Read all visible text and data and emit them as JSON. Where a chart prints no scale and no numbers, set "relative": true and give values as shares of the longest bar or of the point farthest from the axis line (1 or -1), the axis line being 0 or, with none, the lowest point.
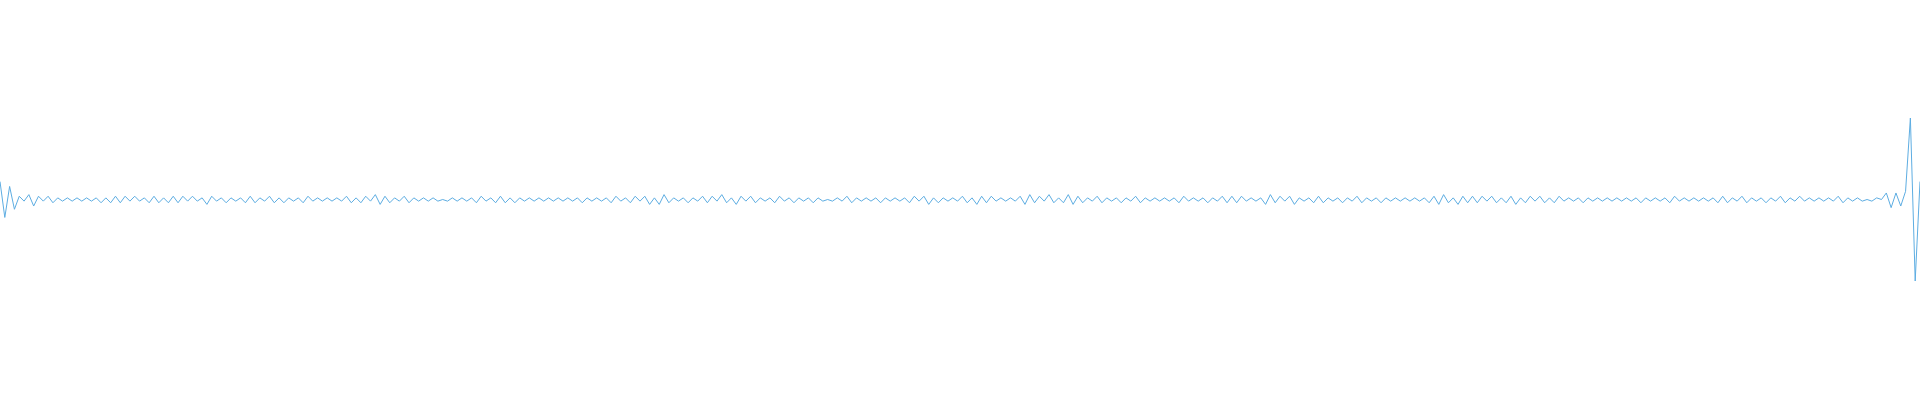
{
  "chart_data": {
    "type": "line",
    "relative": true,
    "marker": "none",
    "categories": [
      null,
      null,
      null,
      null,
      null,
      null,
      null,
      null,
      null,
      null,
      null,
      null,
      null,
      null,
      null,
      null,
      null,
      null,
      null,
      null,
      null,
      null,
      null,
      null,
      null,
      null,
      null,
      null,
      null,
      null,
      null,
      null,
      null,
      null,
      null,
      null,
      null,
      null,
      null,
      null,
      null,
      null,
      null,
      null,
      null,
      null,
      null,
      null,
      null,
      null,
      null,
      null,
      null,
      null,
      null,
      null,
      null,
      null,
      null,
      null,
      null,
      null,
      null,
      null,
      null,
      null,
      null,
      null,
      null,
      null,
      null,
      null,
      null,
      null,
      null,
      null,
      null,
      null,
      null,
      null,
      null,
      null,
      null,
      null,
      null,
      null,
      null,
      null,
      null,
      null,
      null,
      null,
      null,
      null,
      null,
      null,
      null,
      null,
      null,
      null,
      null,
      null,
      null,
      null,
      null,
      null,
      null,
      null,
      null,
      null,
      null,
      null,
      null,
      null,
      null,
      null,
      null,
      null,
      null,
      null,
      null,
      null,
      null,
      null,
      null,
      null,
      null,
      null,
      null,
      null,
      null,
      null,
      null,
      null,
      null,
      null,
      null,
      null,
      null,
      null,
      null,
      null,
      null,
      null,
      null,
      null,
      null,
      null,
      null,
      null,
      null,
      null,
      null,
      null,
      null,
      null,
      null,
      null,
      null,
      null,
      null,
      null,
      null,
      null,
      null,
      null,
      null,
      null,
      null,
      null,
      null,
      null,
      null,
      null,
      null,
      null,
      null,
      null,
      null,
      null,
      null,
      null,
      null,
      null,
      null,
      null,
      null,
      null,
      null,
      null,
      null,
      null,
      null,
      null,
      null,
      null,
      null,
      null,
      null,
      null,
      null,
      null,
      null,
      null,
      null,
      null,
      null,
      null,
      null,
      null,
      null,
      null,
      null,
      null,
      null,
      null,
      null,
      null,
      null,
      null,
      null,
      null,
      null,
      null,
      null,
      null,
      null,
      null,
      null,
      null,
      null,
      null,
      null,
      null,
      null,
      null,
      null,
      null,
      null,
      null,
      null,
      null,
      null,
      null,
      null,
      null,
      null,
      null,
      null,
      null,
      null,
      null,
      null,
      null,
      null,
      null,
      null,
      null,
      null,
      null,
      null,
      null,
      null,
      null,
      null,
      null,
      null,
      null,
      null,
      null,
      null,
      null,
      null,
      null,
      null,
      null,
      null,
      null,
      null,
      null,
      null,
      null,
      null,
      null,
      null,
      null,
      null,
      null,
      null,
      null,
      null,
      null,
      null,
      null,
      null,
      null,
      null,
      null,
      null,
      null,
      null,
      null,
      null,
      null,
      null,
      null,
      null,
      null,
      null,
      null,
      null,
      null,
      null,
      null,
      null,
      null,
      null,
      null,
      null,
      null,
      null,
      null,
      null,
      null,
      null,
      null,
      null,
      null,
      null,
      null,
      null,
      null,
      null,
      null,
      null,
      null,
      null,
      null,
      null,
      null,
      null,
      null,
      null,
      null,
      null,
      null,
      null,
      null,
      null,
      null,
      null,
      null,
      null,
      null,
      null,
      null,
      null,
      null,
      null,
      null,
      null,
      null,
      null,
      null,
      null,
      null,
      null,
      null,
      null,
      null,
      null,
      null,
      null,
      null,
      null,
      null,
      null,
      null,
      null,
      null,
      null,
      null,
      null,
      null,
      null,
      null,
      null,
      null,
      null,
      null,
      null,
      null,
      null,
      null,
      null,
      null,
      null,
      null,
      null,
      null
    ],
    "series": [
      {
        "color": "#5dade2",
        "values": [
          0.61,
          0.39,
          0.58,
          0.44,
          0.52,
          0.49,
          0.53,
          0.46,
          0.52,
          0.49,
          0.52,
          0.48,
          0.51,
          0.49,
          0.51,
          0.49,
          0.51,
          0.49,
          0.51,
          0.49,
          0.51,
          0.48,
          0.51,
          0.48,
          0.52,
          0.48,
          0.52,
          0.49,
          0.52,
          0.49,
          0.51,
          0.48,
          0.52,
          0.48,
          0.51,
          0.48,
          0.52,
          0.48,
          0.52,
          0.49,
          0.52,
          0.49,
          0.51,
          0.47,
          0.52,
          0.49,
          0.51,
          0.48,
          0.51,
          0.49,
          0.51,
          0.48,
          0.52,
          0.48,
          0.51,
          0.49,
          0.52,
          0.48,
          0.51,
          0.48,
          0.51,
          0.49,
          0.51,
          0.48,
          0.52,
          0.49,
          0.51,
          0.49,
          0.51,
          0.49,
          0.51,
          0.49,
          0.52,
          0.48,
          0.51,
          0.48,
          0.52,
          0.49,
          0.53,
          0.47,
          0.52,
          0.48,
          0.51,
          0.49,
          0.52,
          0.48,
          0.51,
          0.49,
          0.51,
          0.49,
          0.51,
          0.49,
          0.5,
          0.49,
          0.51,
          0.49,
          0.51,
          0.49,
          0.51,
          0.48,
          0.52,
          0.49,
          0.51,
          0.48,
          0.52,
          0.48,
          0.51,
          0.48,
          0.51,
          0.49,
          0.51,
          0.49,
          0.51,
          0.49,
          0.51,
          0.49,
          0.51,
          0.49,
          0.51,
          0.49,
          0.51,
          0.48,
          0.51,
          0.49,
          0.51,
          0.49,
          0.51,
          0.48,
          0.52,
          0.49,
          0.51,
          0.48,
          0.52,
          0.49,
          0.52,
          0.47,
          0.51,
          0.47,
          0.53,
          0.48,
          0.51,
          0.49,
          0.51,
          0.48,
          0.51,
          0.49,
          0.52,
          0.48,
          0.52,
          0.49,
          0.53,
          0.48,
          0.51,
          0.47,
          0.52,
          0.49,
          0.52,
          0.48,
          0.51,
          0.49,
          0.51,
          0.48,
          0.52,
          0.49,
          0.51,
          0.48,
          0.51,
          0.49,
          0.51,
          0.48,
          0.51,
          0.49,
          0.5,
          0.49,
          0.51,
          0.49,
          0.52,
          0.48,
          0.51,
          0.49,
          0.51,
          0.49,
          0.51,
          0.48,
          0.51,
          0.49,
          0.51,
          0.49,
          0.51,
          0.48,
          0.52,
          0.49,
          0.52,
          0.47,
          0.51,
          0.48,
          0.51,
          0.49,
          0.51,
          0.49,
          0.52,
          0.48,
          0.51,
          0.47,
          0.52,
          0.48,
          0.52,
          0.49,
          0.51,
          0.49,
          0.51,
          0.49,
          0.52,
          0.47,
          0.53,
          0.48,
          0.52,
          0.49,
          0.53,
          0.48,
          0.51,
          0.48,
          0.53,
          0.47,
          0.52,
          0.48,
          0.51,
          0.49,
          0.52,
          0.48,
          0.51,
          0.49,
          0.51,
          0.48,
          0.51,
          0.49,
          0.52,
          0.48,
          0.51,
          0.49,
          0.51,
          0.49,
          0.51,
          0.49,
          0.51,
          0.48,
          0.52,
          0.49,
          0.51,
          0.49,
          0.51,
          0.48,
          0.51,
          0.49,
          0.52,
          0.48,
          0.52,
          0.48,
          0.52,
          0.49,
          0.51,
          0.49,
          0.51,
          0.47,
          0.53,
          0.48,
          0.52,
          0.49,
          0.52,
          0.47,
          0.51,
          0.49,
          0.51,
          0.48,
          0.52,
          0.48,
          0.51,
          0.49,
          0.51,
          0.48,
          0.51,
          0.49,
          0.52,
          0.48,
          0.51,
          0.49,
          0.51,
          0.48,
          0.51,
          0.49,
          0.51,
          0.49,
          0.51,
          0.49,
          0.51,
          0.49,
          0.51,
          0.48,
          0.52,
          0.47,
          0.53,
          0.48,
          0.51,
          0.47,
          0.52,
          0.48,
          0.52,
          0.48,
          0.52,
          0.49,
          0.52,
          0.48,
          0.51,
          0.48,
          0.52,
          0.47,
          0.51,
          0.48,
          0.52,
          0.49,
          0.52,
          0.48,
          0.51,
          0.48,
          0.52,
          0.49,
          0.51,
          0.49,
          0.51,
          0.48,
          0.51,
          0.49,
          0.51,
          0.49,
          0.51,
          0.49,
          0.51,
          0.49,
          0.51,
          0.49,
          0.51,
          0.48,
          0.51,
          0.49,
          0.51,
          0.49,
          0.51,
          0.48,
          0.52,
          0.49,
          0.51,
          0.49,
          0.51,
          0.49,
          0.51,
          0.49,
          0.51,
          0.48,
          0.52,
          0.48,
          0.51,
          0.49,
          0.52,
          0.48,
          0.51,
          0.49,
          0.51,
          0.48,
          0.51,
          0.49,
          0.52,
          0.48,
          0.51,
          0.49,
          0.52,
          0.49,
          0.51,
          0.49,
          0.51,
          0.49,
          0.51,
          0.49,
          0.52,
          0.48,
          0.51,
          0.49,
          0.51,
          0.49,
          0.5,
          0.49,
          0.51,
          0.5,
          0.54,
          0.45,
          0.54,
          0.46,
          0.55,
          1.0,
          0.0,
          0.61
        ]
      }
    ]
  }
}
